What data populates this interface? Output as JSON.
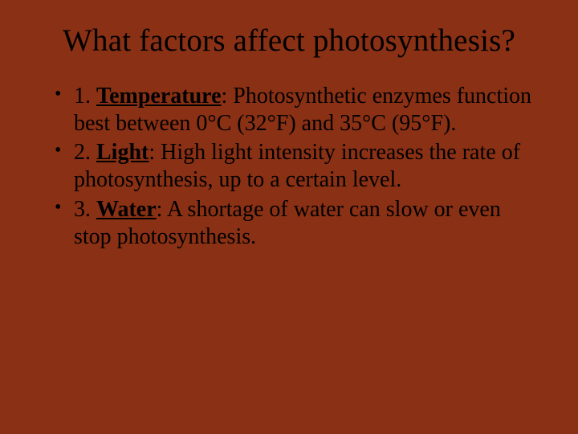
{
  "slide": {
    "background_color": "#8a3014",
    "text_color": "#000000",
    "font_family": "Times New Roman",
    "title": "What factors affect photosynthesis?",
    "title_fontsize": 39,
    "body_fontsize": 28,
    "bullets": [
      {
        "prefix": "1. ",
        "keyword": "Temperature",
        "rest": ": Photosynthetic enzymes function best between 0°C (32°F) and 35°C (95°F)."
      },
      {
        "prefix": "2. ",
        "keyword": "Light",
        "rest": ": High light intensity increases the rate of photosynthesis, up to a certain level."
      },
      {
        "prefix": "3.  ",
        "keyword": "Water",
        "rest": ": A shortage of water can slow or even stop photosynthesis."
      }
    ]
  }
}
